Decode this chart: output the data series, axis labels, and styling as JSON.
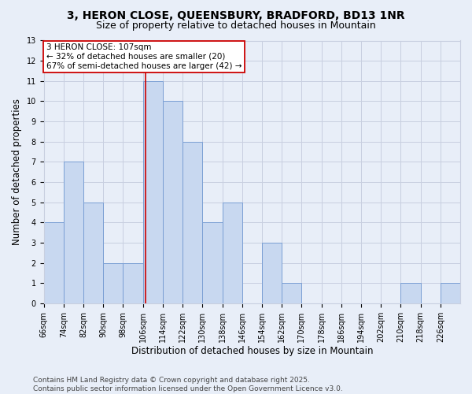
{
  "title": "3, HERON CLOSE, QUEENSBURY, BRADFORD, BD13 1NR",
  "subtitle": "Size of property relative to detached houses in Mountain",
  "xlabel": "Distribution of detached houses by size in Mountain",
  "ylabel": "Number of detached properties",
  "footer_line1": "Contains HM Land Registry data © Crown copyright and database right 2025.",
  "footer_line2": "Contains public sector information licensed under the Open Government Licence v3.0.",
  "bin_edges": [
    66,
    74,
    82,
    90,
    98,
    106,
    114,
    122,
    130,
    138,
    146,
    154,
    162,
    170,
    178,
    186,
    194,
    202,
    210,
    218,
    226,
    234
  ],
  "bin_labels": [
    "66sqm",
    "74sqm",
    "82sqm",
    "90sqm",
    "98sqm",
    "106sqm",
    "114sqm",
    "122sqm",
    "130sqm",
    "138sqm",
    "146sqm",
    "154sqm",
    "162sqm",
    "170sqm",
    "178sqm",
    "186sqm",
    "194sqm",
    "202sqm",
    "210sqm",
    "218sqm",
    "226sqm"
  ],
  "counts": [
    4,
    7,
    5,
    2,
    2,
    11,
    10,
    8,
    4,
    5,
    0,
    3,
    1,
    0,
    0,
    0,
    0,
    0,
    1,
    0,
    1
  ],
  "bar_color": "#c8d8f0",
  "bar_edge_color": "#7a9fd4",
  "property_size": 107,
  "vline_color": "#cc0000",
  "annotation_text": "3 HERON CLOSE: 107sqm\n← 32% of detached houses are smaller (20)\n67% of semi-detached houses are larger (42) →",
  "annotation_box_color": "#ffffff",
  "annotation_box_edge_color": "#cc0000",
  "ylim": [
    0,
    13
  ],
  "yticks": [
    0,
    1,
    2,
    3,
    4,
    5,
    6,
    7,
    8,
    9,
    10,
    11,
    12,
    13
  ],
  "grid_color": "#c8cfe0",
  "background_color": "#e8eef8",
  "title_fontsize": 10,
  "subtitle_fontsize": 9,
  "tick_label_fontsize": 7,
  "ylabel_fontsize": 8.5,
  "xlabel_fontsize": 8.5,
  "annotation_fontsize": 7.5,
  "footer_fontsize": 6.5
}
